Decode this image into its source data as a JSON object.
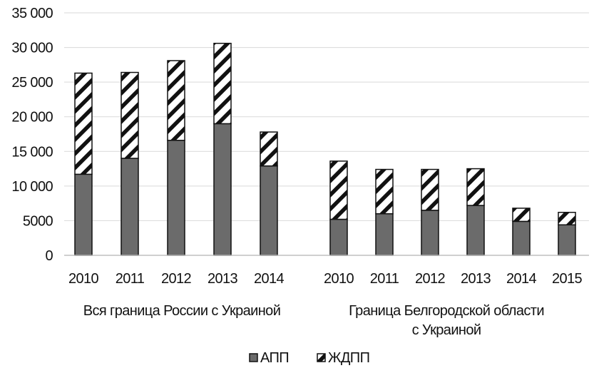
{
  "chart_data": {
    "type": "bar",
    "stacked": true,
    "yticks": [
      "0",
      "5000",
      "10 000",
      "15 000",
      "20 000",
      "25 000",
      "30 000",
      "35 000"
    ],
    "ylim": [
      0,
      35000
    ],
    "grid": true,
    "legend_position": "bottom",
    "groups": [
      {
        "label": "Вся граница России с Украиной",
        "categories": [
          "2010",
          "2011",
          "2012",
          "2013",
          "2014"
        ]
      },
      {
        "label": "Граница Белгородской области с Украиной",
        "categories": [
          "2010",
          "2011",
          "2012",
          "2013",
          "2014",
          "2015"
        ]
      }
    ],
    "series": [
      {
        "name": "АПП",
        "fill": "solid",
        "values": [
          11700,
          14000,
          16600,
          19000,
          12900,
          5200,
          6000,
          6500,
          7200,
          4900,
          4400
        ]
      },
      {
        "name": "ЖДПП",
        "fill": "hatched",
        "values": [
          14600,
          12400,
          11500,
          11600,
          4900,
          8400,
          6400,
          5900,
          5300,
          1900,
          1800
        ]
      }
    ],
    "colors": {
      "solid": "#6b6b6b",
      "hatch": "#111111",
      "outline": "#111111",
      "grid": "#d9d9d9"
    }
  }
}
